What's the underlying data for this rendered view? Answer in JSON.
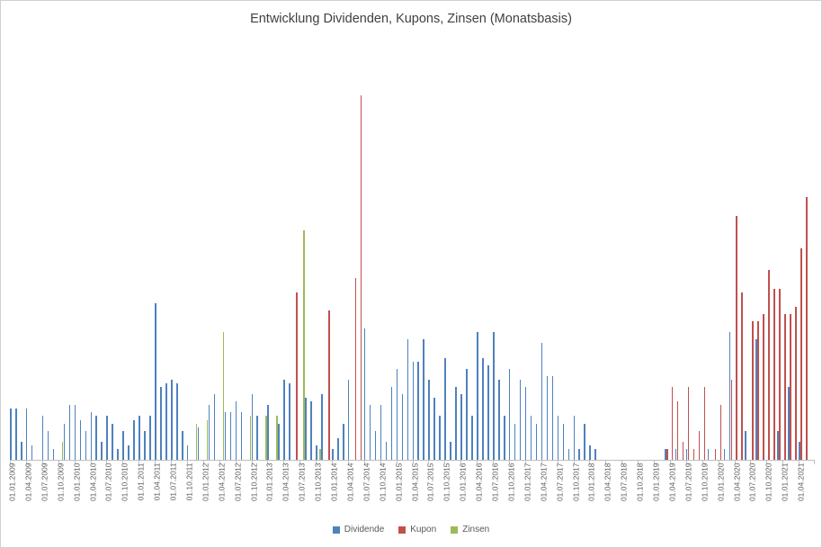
{
  "legend": [
    {
      "label": "Dividende",
      "color": "#4F81BD"
    },
    {
      "label": "Kupon",
      "color": "#C0504D"
    },
    {
      "label": "Zinsen",
      "color": "#9BBB59"
    }
  ],
  "chart_data": {
    "type": "bar",
    "title": "Entwicklung Dividenden, Kupons, Zinsen (Monatsbasis)",
    "xlabel": "",
    "ylabel": "",
    "y_axis_visible": false,
    "grid": false,
    "legend_position": "bottom",
    "ylim": [
      0,
      100
    ],
    "x_tick_labels": [
      "01.01.2009",
      "01.04.2009",
      "01.07.2009",
      "01.10.2009",
      "01.01.2010",
      "01.04.2010",
      "01.07.2010",
      "01.10.2010",
      "01.01.2011",
      "01.04.2011",
      "01.07.2011",
      "01.10.2011",
      "01.01.2012",
      "01.04.2012",
      "01.07.2012",
      "01.10.2012",
      "01.01.2013",
      "01.04.2013",
      "01.07.2013",
      "01.10.2013",
      "01.01.2014",
      "01.04.2014",
      "01.07.2014",
      "01.10.2014",
      "01.01.2015",
      "01.04.2015",
      "01.07.2015",
      "01.10.2015",
      "01.01.2016",
      "01.04.2016",
      "01.07.2016",
      "01.10.2016",
      "01.01.2017",
      "01.04.2017",
      "01.07.2017",
      "01.10.2017",
      "01.01.2018",
      "01.04.2018",
      "01.07.2018",
      "01.10.2018",
      "01.01.2019",
      "01.04.2019",
      "01.07.2019",
      "01.10.2019",
      "01.01.2020",
      "01.04.2020",
      "01.07.2020",
      "01.10.2020",
      "01.01.2021",
      "01.04.2021"
    ],
    "x_note": "monthly bars from 01.2009 to 06.2021, values in relative units (no y-axis labels visible)",
    "series": [
      {
        "name": "Dividende",
        "color": "#4F81BD",
        "values": [
          14,
          14,
          5,
          14,
          4,
          0,
          12,
          8,
          3,
          0,
          10,
          15,
          15,
          11,
          8,
          13,
          12,
          5,
          12,
          10,
          3,
          8,
          4,
          11,
          12,
          8,
          12,
          43,
          20,
          21,
          22,
          21,
          8,
          4,
          0,
          9,
          0,
          15,
          18,
          0,
          13,
          13,
          16,
          13,
          0,
          18,
          12,
          0,
          15,
          0,
          10,
          22,
          21,
          0,
          0,
          17,
          16,
          4,
          18,
          0,
          3,
          6,
          10,
          22,
          0,
          0,
          36,
          15,
          8,
          15,
          5,
          20,
          25,
          18,
          33,
          27,
          27,
          33,
          22,
          17,
          12,
          28,
          5,
          20,
          18,
          25,
          12,
          35,
          28,
          26,
          35,
          22,
          12,
          25,
          10,
          22,
          20,
          12,
          10,
          32,
          23,
          23,
          12,
          10,
          3,
          12,
          3,
          10,
          4,
          3,
          0,
          0,
          0,
          0,
          0,
          0,
          0,
          0,
          0,
          0,
          0,
          0,
          3,
          0,
          3,
          0,
          3,
          0,
          0,
          0,
          3,
          0,
          0,
          3,
          35,
          0,
          0,
          8,
          0,
          33,
          0,
          0,
          0,
          8,
          0,
          20,
          0,
          5,
          0,
          0
        ]
      },
      {
        "name": "Kupon",
        "color": "#C0504D",
        "values": [
          0,
          0,
          0,
          0,
          0,
          0,
          0,
          0,
          0,
          0,
          0,
          0,
          0,
          0,
          0,
          0,
          0,
          0,
          0,
          0,
          0,
          0,
          0,
          0,
          0,
          0,
          0,
          0,
          0,
          0,
          0,
          0,
          0,
          0,
          0,
          0,
          0,
          0,
          0,
          0,
          0,
          0,
          0,
          0,
          0,
          0,
          0,
          0,
          0,
          0,
          0,
          0,
          0,
          46,
          0,
          0,
          0,
          0,
          0,
          41,
          0,
          0,
          0,
          0,
          50,
          100,
          0,
          0,
          0,
          0,
          0,
          0,
          0,
          0,
          0,
          0,
          0,
          0,
          0,
          0,
          0,
          0,
          0,
          0,
          0,
          0,
          0,
          0,
          0,
          0,
          0,
          0,
          0,
          0,
          0,
          0,
          0,
          0,
          0,
          0,
          0,
          0,
          0,
          0,
          0,
          0,
          0,
          0,
          0,
          0,
          0,
          0,
          0,
          0,
          0,
          0,
          0,
          0,
          0,
          0,
          0,
          0,
          3,
          20,
          16,
          5,
          20,
          3,
          8,
          20,
          0,
          3,
          15,
          0,
          22,
          67,
          46,
          0,
          38,
          38,
          40,
          52,
          47,
          47,
          40,
          40,
          42,
          58,
          72,
          0
        ]
      },
      {
        "name": "Zinsen",
        "color": "#9BBB59",
        "values": [
          0,
          0,
          0,
          0,
          0,
          0,
          0,
          0,
          0,
          5,
          0,
          0,
          0,
          0,
          0,
          0,
          0,
          0,
          0,
          0,
          0,
          0,
          0,
          0,
          0,
          0,
          0,
          0,
          0,
          0,
          0,
          0,
          0,
          0,
          10,
          0,
          11,
          0,
          0,
          35,
          0,
          0,
          0,
          0,
          12,
          0,
          0,
          12,
          0,
          12,
          0,
          0,
          0,
          0,
          63,
          0,
          0,
          3,
          0,
          0,
          0,
          0,
          0,
          0,
          0,
          0,
          0,
          0,
          0,
          0,
          0,
          0,
          0,
          0,
          0,
          0,
          0,
          0,
          0,
          0,
          0,
          0,
          0,
          0,
          0,
          0,
          0,
          0,
          0,
          0,
          0,
          0,
          0,
          0,
          0,
          0,
          0,
          0,
          0,
          0,
          0,
          0,
          0,
          0,
          0,
          0,
          0,
          0,
          0,
          0,
          0,
          0,
          0,
          0,
          0,
          0,
          0,
          0,
          0,
          0,
          0,
          0,
          0,
          0,
          0,
          0,
          0,
          0,
          0,
          0,
          0,
          0,
          0,
          0,
          0,
          0,
          0,
          0,
          0,
          0,
          0,
          0,
          0,
          0,
          0,
          0,
          0,
          0,
          0,
          0
        ]
      }
    ]
  }
}
